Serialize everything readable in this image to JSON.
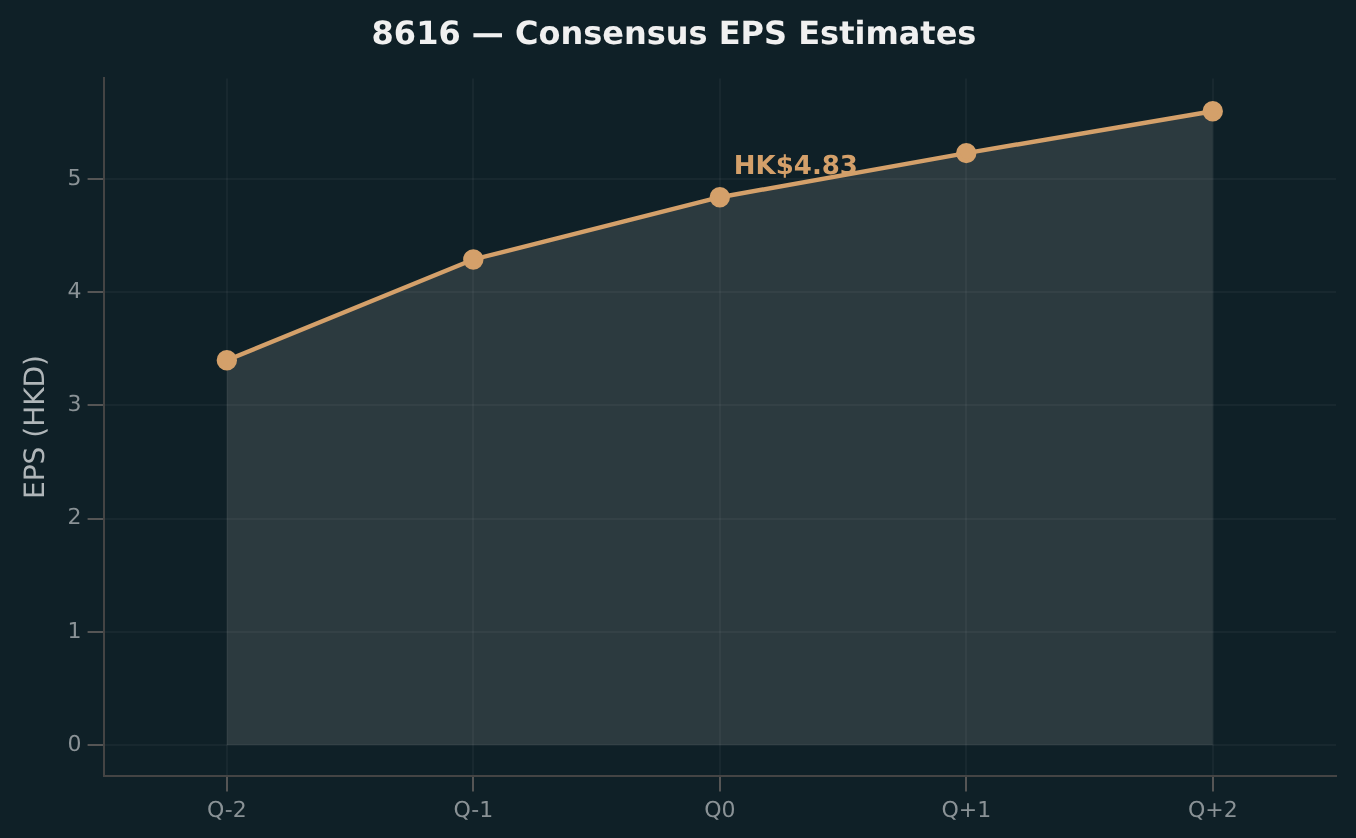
{
  "chart_data": {
    "type": "area",
    "title": "8616 — Consensus EPS Estimates",
    "ylabel": "EPS (HKD)",
    "categories": [
      "Q-2",
      "Q-1",
      "Q0",
      "Q+1",
      "Q+2"
    ],
    "series": [
      {
        "color": "#d4a06a",
        "values": [
          3.4,
          4.29,
          4.84,
          5.23,
          5.6
        ]
      }
    ],
    "ylim": [
      -0.27,
      5.89
    ],
    "yticks": [
      0,
      1,
      2,
      3,
      4,
      5
    ],
    "grid": true,
    "marker": "circle",
    "legend": false,
    "annotations": [
      {
        "text": "HK$4.83",
        "x": "Q0",
        "y": 4.83
      }
    ]
  }
}
